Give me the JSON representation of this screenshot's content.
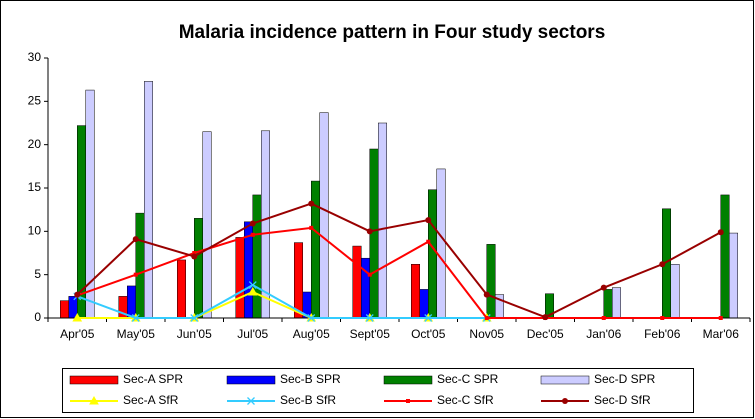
{
  "chart_data": {
    "type": "bar",
    "title": "Malaria incidence pattern in Four study sectors",
    "categories": [
      "Apr'05",
      "May'05",
      "Jun'05",
      "Jul'05",
      "Aug'05",
      "Sept'05",
      "Oct'05",
      "Nov05",
      "Dec'05",
      "Jan'06",
      "Feb'06",
      "Mar'06"
    ],
    "ylim": [
      0,
      30
    ],
    "yticks": [
      0,
      5,
      10,
      15,
      20,
      25,
      30
    ],
    "grid": false,
    "series": [
      {
        "name": "Sec-A SPR",
        "type": "bar",
        "color": "#ff0000",
        "values": [
          2.0,
          2.5,
          6.7,
          9.3,
          8.7,
          8.3,
          6.2,
          0,
          0,
          0,
          0,
          0
        ]
      },
      {
        "name": "Sec-B SPR",
        "type": "bar",
        "color": "#0000ff",
        "values": [
          2.5,
          3.7,
          0,
          11.1,
          3.0,
          6.9,
          3.3,
          0,
          0,
          0,
          0,
          0
        ]
      },
      {
        "name": "Sec-C SPR",
        "type": "bar",
        "color": "#008000",
        "values": [
          22.2,
          12.1,
          11.5,
          14.2,
          15.8,
          19.5,
          14.8,
          8.5,
          2.8,
          3.3,
          12.6,
          14.2
        ]
      },
      {
        "name": "Sec-D SPR",
        "type": "bar",
        "color": "#ccccff",
        "values": [
          26.3,
          27.3,
          21.5,
          21.6,
          23.7,
          22.5,
          17.2,
          2.7,
          0,
          3.5,
          6.2,
          9.8
        ]
      },
      {
        "name": "Sec-A SfR",
        "type": "line",
        "marker": "triangle",
        "color": "#ffff00",
        "values": [
          0,
          0,
          0,
          3.0,
          0,
          0,
          0,
          0,
          null,
          null,
          null,
          null
        ]
      },
      {
        "name": "Sec-B SfR",
        "type": "line",
        "marker": "x",
        "color": "#33ccff",
        "values": [
          2.5,
          0,
          0,
          3.8,
          0,
          0,
          0,
          0,
          null,
          null,
          null,
          null
        ]
      },
      {
        "name": "Sec-C SfR",
        "type": "line",
        "marker": "square",
        "color": "#ff0000",
        "values": [
          2.6,
          5.0,
          7.5,
          9.6,
          10.4,
          5.0,
          8.8,
          0,
          0,
          0,
          0,
          0
        ]
      },
      {
        "name": "Sec-D SfR",
        "type": "line",
        "marker": "circle",
        "color": "#990000",
        "values": [
          2.7,
          9.1,
          7.1,
          10.9,
          13.2,
          10.0,
          11.3,
          2.7,
          0.1,
          3.5,
          6.2,
          9.9
        ]
      }
    ]
  }
}
